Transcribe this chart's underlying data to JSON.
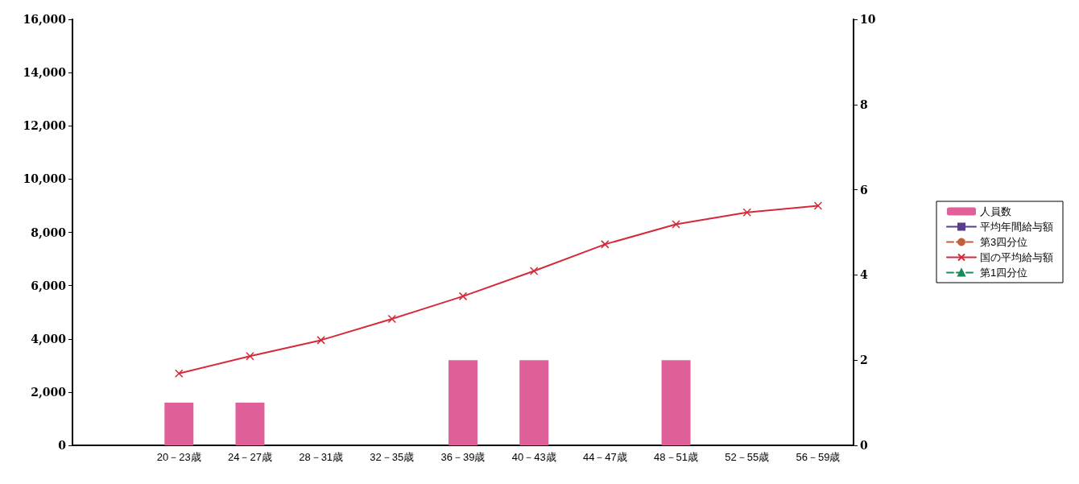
{
  "chart_data": {
    "type": "bar",
    "categories": [
      null,
      "20－23歳",
      "24－27歳",
      "28－31歳",
      "32－35歳",
      "36－39歳",
      "40－43歳",
      "44－47歳",
      "48－51歳",
      "52－55歳",
      "56－59歳"
    ],
    "series": [
      {
        "name": "人員数",
        "axis": "y2",
        "color": "#e0609a",
        "values": [
          null,
          1,
          1,
          null,
          null,
          2,
          2,
          null,
          2,
          null,
          null
        ]
      },
      {
        "name": "平均年間給与額",
        "type": "line",
        "color": "#5a3d8c",
        "marker": "square",
        "line_style": "solid",
        "values": [
          null,
          null,
          null,
          null,
          null,
          null,
          null,
          null,
          null,
          null,
          null
        ]
      },
      {
        "name": "第3四分位",
        "type": "line",
        "color": "#c0603a",
        "marker": "circle",
        "line_style": "dashed",
        "values": [
          null,
          null,
          null,
          null,
          null,
          null,
          null,
          null,
          null,
          null,
          null
        ]
      },
      {
        "name": "国の平均給与額",
        "type": "line",
        "color": "#d42a3a",
        "marker": "cross",
        "line_style": "solid",
        "values": [
          null,
          2700,
          3350,
          3950,
          4750,
          5600,
          6550,
          7550,
          8300,
          8750,
          9000
        ]
      },
      {
        "name": "第1四分位",
        "type": "line",
        "color": "#1a8a5a",
        "marker": "triangle",
        "line_style": "dashed",
        "values": [
          null,
          null,
          null,
          null,
          null,
          null,
          null,
          null,
          null,
          null,
          null
        ]
      }
    ],
    "ylim": [
      0,
      16000
    ],
    "yticks": [
      {
        "value": 0,
        "label": "0"
      },
      {
        "value": 2000,
        "label": "2,000"
      },
      {
        "value": 4000,
        "label": "4,000"
      },
      {
        "value": 6000,
        "label": "6,000"
      },
      {
        "value": 8000,
        "label": "8,000"
      },
      {
        "value": 10000,
        "label": "10,000"
      },
      {
        "value": 12000,
        "label": "12,000"
      },
      {
        "value": 14000,
        "label": "14,000"
      },
      {
        "value": 16000,
        "label": "16,000"
      }
    ],
    "y2lim": [
      0,
      10
    ],
    "y2ticks": [
      0,
      2,
      4,
      6,
      8,
      10
    ],
    "grid": false,
    "legend": "right"
  }
}
